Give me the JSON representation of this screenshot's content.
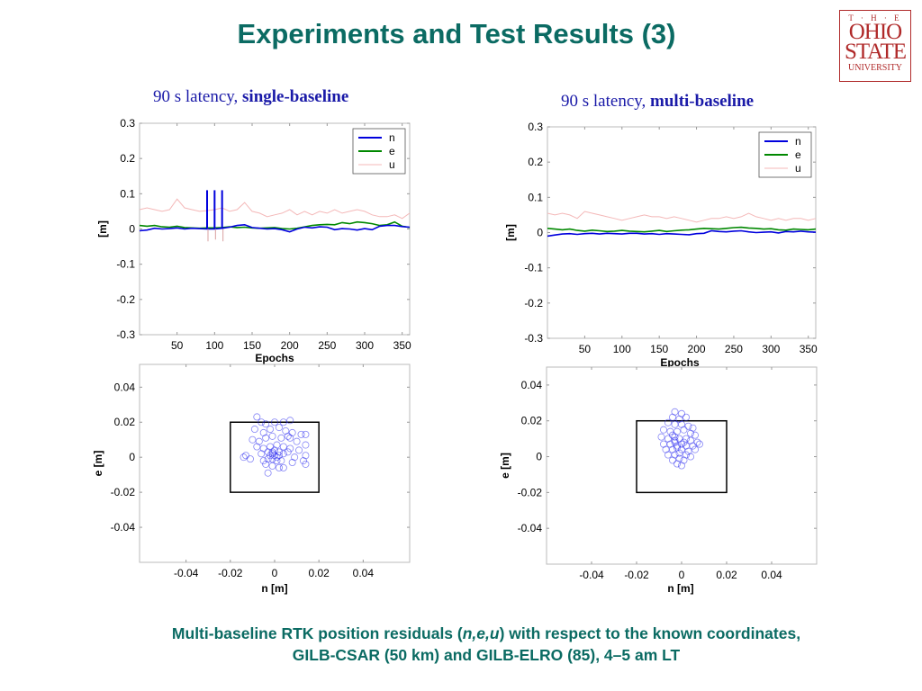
{
  "slide": {
    "title": "Experiments and Test Results (3)",
    "logo": {
      "line1": "T · H · E",
      "line2": "OHIO",
      "line3": "STATE",
      "line4": "UNIVERSITY"
    },
    "subtitle_left": {
      "normal": "90 s latency, ",
      "bold": "single-baseline"
    },
    "subtitle_right": {
      "normal": "90 s latency, ",
      "bold": "multi-baseline"
    },
    "caption": {
      "line1_a": "Multi-baseline RTK position residuals (",
      "line1_em": "n,e,u",
      "line1_b": ") with respect to the known coordinates,",
      "line2": "GILB-CSAR (50 km) and GILB-ELRO (85), 4–5 am LT"
    }
  },
  "colors": {
    "title": "#0b6b63",
    "n": "#0000dd",
    "e": "#008800",
    "u": "#f4b8b8",
    "scatter": "#2222ee"
  },
  "chart_data": [
    {
      "id": "ts-single",
      "type": "line",
      "xlabel": "Epochs",
      "ylabel": "[m]",
      "xlim": [
        0,
        360
      ],
      "ylim": [
        -0.3,
        0.3
      ],
      "xticks": [
        50,
        100,
        150,
        200,
        250,
        300,
        350
      ],
      "yticks": [
        0.3,
        0.2,
        0.1,
        0,
        -0.1,
        -0.2,
        -0.3
      ],
      "ytick_labels": [
        "0.3",
        "0.2",
        "0.1",
        "0",
        "-0.1",
        "-0.2",
        "-0.3"
      ],
      "legend": [
        "n",
        "e",
        "u"
      ],
      "legend_position": "top-right",
      "x": [
        0,
        10,
        20,
        30,
        40,
        50,
        60,
        70,
        80,
        90,
        100,
        110,
        120,
        130,
        140,
        150,
        160,
        170,
        180,
        190,
        200,
        210,
        220,
        230,
        240,
        250,
        260,
        270,
        280,
        290,
        300,
        310,
        320,
        330,
        340,
        350,
        360
      ],
      "series": [
        {
          "name": "n",
          "values": [
            -0.005,
            -0.003,
            0.002,
            0,
            0.001,
            0.003,
            0,
            0.002,
            0.001,
            0,
            0,
            0.002,
            0.005,
            0.01,
            0.012,
            0.004,
            0.002,
            0,
            0.001,
            -0.002,
            -0.008,
            0,
            0.005,
            0.003,
            0.006,
            0.005,
            -0.002,
            0.001,
            0,
            -0.003,
            0.001,
            -0.002,
            0.008,
            0.01,
            0.01,
            0.007,
            0.005
          ]
        },
        {
          "name": "e",
          "values": [
            0.01,
            0.008,
            0.01,
            0.006,
            0.005,
            0.008,
            0.004,
            0.003,
            0.002,
            0.003,
            0.003,
            0.004,
            0.006,
            0.004,
            0.005,
            0.003,
            0.002,
            0.003,
            0.004,
            0.001,
            0,
            0.002,
            0.006,
            0.01,
            0.012,
            0.013,
            0.012,
            0.018,
            0.015,
            0.02,
            0.018,
            0.015,
            0.01,
            0.012,
            0.02,
            0.008,
            0.004
          ]
        },
        {
          "name": "u",
          "values": [
            0.055,
            0.06,
            0.055,
            0.05,
            0.055,
            0.085,
            0.06,
            0.055,
            0.05,
            0.052,
            0.055,
            0.06,
            0.05,
            0.055,
            0.075,
            0.05,
            0.045,
            0.035,
            0.04,
            0.045,
            0.055,
            0.04,
            0.05,
            0.04,
            0.05,
            0.045,
            0.055,
            0.045,
            0.05,
            0.055,
            0.05,
            0.04,
            0.035,
            0.035,
            0.04,
            0.03,
            0.045
          ]
        }
      ],
      "spikes": [
        {
          "epoch": 90,
          "n": 0.11,
          "u": -0.035
        },
        {
          "epoch": 100,
          "n": 0.11,
          "u": -0.03
        },
        {
          "epoch": 110,
          "n": 0.11,
          "u": -0.035
        }
      ]
    },
    {
      "id": "ts-multi",
      "type": "line",
      "xlabel": "Epochs",
      "ylabel": "[m]",
      "xlim": [
        0,
        360
      ],
      "ylim": [
        -0.3,
        0.3
      ],
      "xticks": [
        50,
        100,
        150,
        200,
        250,
        300,
        350
      ],
      "yticks": [
        0.3,
        0.2,
        0.1,
        0,
        -0.1,
        -0.2,
        -0.3
      ],
      "ytick_labels": [
        "0.3",
        "0.2",
        "0.1",
        "0",
        "-0.1",
        "-0.2",
        "-0.3"
      ],
      "legend": [
        "n",
        "e",
        "u"
      ],
      "legend_position": "top-right",
      "x": [
        0,
        10,
        20,
        30,
        40,
        50,
        60,
        70,
        80,
        90,
        100,
        110,
        120,
        130,
        140,
        150,
        160,
        170,
        180,
        190,
        200,
        210,
        220,
        230,
        240,
        250,
        260,
        270,
        280,
        290,
        300,
        310,
        320,
        330,
        340,
        350,
        360
      ],
      "series": [
        {
          "name": "n",
          "values": [
            -0.01,
            -0.007,
            -0.004,
            -0.003,
            -0.005,
            -0.003,
            -0.002,
            -0.004,
            -0.002,
            -0.003,
            -0.004,
            -0.002,
            -0.002,
            -0.004,
            -0.003,
            -0.005,
            -0.003,
            -0.004,
            -0.005,
            -0.006,
            -0.003,
            -0.002,
            0.005,
            0.003,
            0.002,
            0.004,
            0.005,
            0.002,
            0,
            0.001,
            0.002,
            -0.001,
            0.003,
            0.002,
            0.004,
            0.002,
            0.001
          ]
        },
        {
          "name": "e",
          "values": [
            0.012,
            0.01,
            0.008,
            0.01,
            0.006,
            0.004,
            0.007,
            0.005,
            0.003,
            0.004,
            0.006,
            0.004,
            0.003,
            0.002,
            0.004,
            0.006,
            0.003,
            0.005,
            0.007,
            0.008,
            0.01,
            0.012,
            0.011,
            0.01,
            0.012,
            0.014,
            0.015,
            0.013,
            0.012,
            0.01,
            0.011,
            0.008,
            0.007,
            0.01,
            0.009,
            0.008,
            0.01
          ]
        },
        {
          "name": "u",
          "values": [
            0.055,
            0.05,
            0.055,
            0.05,
            0.04,
            0.06,
            0.055,
            0.05,
            0.045,
            0.04,
            0.035,
            0.04,
            0.045,
            0.05,
            0.045,
            0.045,
            0.04,
            0.045,
            0.04,
            0.035,
            0.03,
            0.035,
            0.04,
            0.04,
            0.045,
            0.04,
            0.045,
            0.055,
            0.045,
            0.04,
            0.035,
            0.04,
            0.035,
            0.04,
            0.04,
            0.035,
            0.04
          ]
        }
      ],
      "spikes": []
    },
    {
      "id": "sc-single",
      "type": "scatter",
      "xlabel": "n [m]",
      "ylabel": "e [m]",
      "xlim": [
        -0.061,
        0.061
      ],
      "ylim": [
        -0.06,
        0.053
      ],
      "xticks": [
        -0.04,
        -0.02,
        0,
        0.02,
        0.04
      ],
      "xtick_labels": [
        "-0.04",
        "-0.02",
        "0",
        "0.02",
        "0.04"
      ],
      "yticks": [
        0.04,
        0.02,
        0,
        -0.02,
        -0.04
      ],
      "ytick_labels": [
        "0.04",
        "0.02",
        "0",
        "-0.02",
        "-0.04"
      ],
      "box": [
        -0.02,
        0.02,
        -0.02,
        0.02
      ],
      "points": [
        [
          -0.008,
          0.023
        ],
        [
          -0.006,
          0.02
        ],
        [
          -0.004,
          0.019
        ],
        [
          0,
          0.02
        ],
        [
          0.004,
          0.02
        ],
        [
          0.007,
          0.021
        ],
        [
          -0.009,
          0.016
        ],
        [
          -0.005,
          0.014
        ],
        [
          -0.002,
          0.016
        ],
        [
          0.002,
          0.017
        ],
        [
          0.005,
          0.015
        ],
        [
          0.008,
          0.014
        ],
        [
          0.012,
          0.013
        ],
        [
          0.014,
          0.013
        ],
        [
          -0.01,
          0.01
        ],
        [
          -0.007,
          0.009
        ],
        [
          -0.004,
          0.011
        ],
        [
          -0.001,
          0.012
        ],
        [
          0.003,
          0.011
        ],
        [
          0.006,
          0.012
        ],
        [
          0.007,
          0.011
        ],
        [
          0.01,
          0.009
        ],
        [
          0.014,
          0.007
        ],
        [
          -0.008,
          0.006
        ],
        [
          -0.005,
          0.005
        ],
        [
          -0.002,
          0.006
        ],
        [
          0.001,
          0.007
        ],
        [
          0.004,
          0.006
        ],
        [
          0.007,
          0.005
        ],
        [
          0.011,
          0.004
        ],
        [
          -0.013,
          0.001
        ],
        [
          -0.011,
          -0.001
        ],
        [
          -0.014,
          0
        ],
        [
          -0.006,
          0.002
        ],
        [
          -0.003,
          0.003
        ],
        [
          -0.001,
          0.002
        ],
        [
          0,
          0.001
        ],
        [
          0.002,
          0.003
        ],
        [
          0.004,
          0.002
        ],
        [
          0.006,
          0.003
        ],
        [
          0.009,
          0
        ],
        [
          0.014,
          0.001
        ],
        [
          -0.005,
          -0.002
        ],
        [
          -0.003,
          -0.001
        ],
        [
          -0.001,
          -0.001
        ],
        [
          0.001,
          0
        ],
        [
          0.003,
          -0.002
        ],
        [
          0.008,
          -0.003
        ],
        [
          0.013,
          -0.002
        ],
        [
          0.014,
          -0.004
        ],
        [
          -0.004,
          -0.004
        ],
        [
          -0.001,
          -0.005
        ],
        [
          0.002,
          -0.006
        ],
        [
          0.004,
          -0.006
        ],
        [
          -0.003,
          -0.009
        ],
        [
          0.001,
          -0.002
        ],
        [
          -0.002,
          0.001
        ],
        [
          0,
          0.004
        ],
        [
          0.002,
          0.001
        ],
        [
          -0.001,
          0.003
        ]
      ]
    },
    {
      "id": "sc-multi",
      "type": "scatter",
      "xlabel": "n [m]",
      "ylabel": "e [m]",
      "xlim": [
        -0.06,
        0.06
      ],
      "ylim": [
        -0.06,
        0.05
      ],
      "xticks": [
        -0.04,
        -0.02,
        0,
        0.02,
        0.04
      ],
      "xtick_labels": [
        "-0.04",
        "-0.02",
        "0",
        "0.02",
        "0.04"
      ],
      "yticks": [
        0.04,
        0.02,
        0,
        -0.02,
        -0.04
      ],
      "ytick_labels": [
        "0.04",
        "0.02",
        "0",
        "-0.02",
        "-0.04"
      ],
      "box": [
        -0.02,
        0.02,
        -0.02,
        0.02
      ],
      "points": [
        [
          -0.003,
          0.025
        ],
        [
          0,
          0.024
        ],
        [
          -0.004,
          0.022
        ],
        [
          -0.001,
          0.021
        ],
        [
          0.002,
          0.022
        ],
        [
          -0.006,
          0.019
        ],
        [
          -0.003,
          0.018
        ],
        [
          0,
          0.018
        ],
        [
          0.003,
          0.017
        ],
        [
          0.005,
          0.016
        ],
        [
          -0.008,
          0.015
        ],
        [
          -0.005,
          0.014
        ],
        [
          -0.002,
          0.014
        ],
        [
          0.001,
          0.015
        ],
        [
          0.004,
          0.013
        ],
        [
          0.006,
          0.012
        ],
        [
          -0.009,
          0.011
        ],
        [
          -0.006,
          0.01
        ],
        [
          -0.003,
          0.011
        ],
        [
          -0.001,
          0.01
        ],
        [
          0.002,
          0.01
        ],
        [
          0.004,
          0.009
        ],
        [
          0.007,
          0.008
        ],
        [
          -0.008,
          0.007
        ],
        [
          -0.005,
          0.007
        ],
        [
          -0.003,
          0.008
        ],
        [
          0,
          0.007
        ],
        [
          0.002,
          0.006
        ],
        [
          0.005,
          0.006
        ],
        [
          0.008,
          0.007
        ],
        [
          -0.007,
          0.004
        ],
        [
          -0.004,
          0.004
        ],
        [
          -0.002,
          0.005
        ],
        [
          0,
          0.004
        ],
        [
          0.003,
          0.003
        ],
        [
          0.006,
          0.004
        ],
        [
          -0.006,
          0.001
        ],
        [
          -0.003,
          0.001
        ],
        [
          -0.001,
          0.002
        ],
        [
          0.002,
          0.001
        ],
        [
          0.004,
          0
        ],
        [
          -0.004,
          -0.002
        ],
        [
          -0.001,
          -0.001
        ],
        [
          0.001,
          -0.002
        ],
        [
          -0.002,
          -0.004
        ],
        [
          0,
          -0.005
        ],
        [
          -0.003,
          0.009
        ],
        [
          -0.002,
          0.006
        ],
        [
          0.001,
          0.008
        ],
        [
          -0.004,
          0.012
        ]
      ]
    }
  ]
}
